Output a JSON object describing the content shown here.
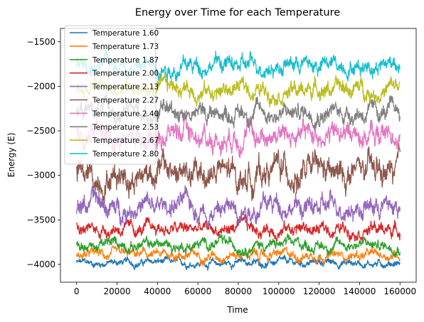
{
  "chart_data": {
    "type": "line",
    "title": "Energy over Time for each Temperature",
    "xlabel": "Time",
    "ylabel": "Energy (E)",
    "xlim": [
      -8000,
      168000
    ],
    "ylim": [
      -4200,
      -1350
    ],
    "x_ticks": [
      0,
      20000,
      40000,
      60000,
      80000,
      100000,
      120000,
      140000,
      160000
    ],
    "y_ticks": [
      -4000,
      -3500,
      -3000,
      -2500,
      -2000,
      -1500
    ],
    "x_tick_labels": [
      "0",
      "20000",
      "40000",
      "60000",
      "80000",
      "100000",
      "120000",
      "140000",
      "160000"
    ],
    "y_tick_labels": [
      "−4000",
      "−3500",
      "−3000",
      "−2500",
      "−2000",
      "−1500"
    ],
    "grid": false,
    "legend_position": "top-left",
    "x": [
      0,
      10000,
      20000,
      30000,
      40000,
      50000,
      60000,
      70000,
      80000,
      90000,
      100000,
      110000,
      120000,
      130000,
      140000,
      150000,
      160000
    ],
    "series": [
      {
        "name": "Temperature 1.60",
        "color": "#1f77b4",
        "values": [
          -3980,
          -3990,
          -3975,
          -3985,
          -3970,
          -3990,
          -3980,
          -3995,
          -3975,
          -3985,
          -3980,
          -3990,
          -3970,
          -3985,
          -3980,
          -3990,
          -3975
        ],
        "spread": 60
      },
      {
        "name": "Temperature 1.73",
        "color": "#ff7f0e",
        "values": [
          -3900,
          -3880,
          -3910,
          -3890,
          -3905,
          -3885,
          -3900,
          -3895,
          -3880,
          -3905,
          -3890,
          -3900,
          -3885,
          -3910,
          -3895,
          -3900,
          -3885
        ],
        "spread": 80
      },
      {
        "name": "Temperature 1.87",
        "color": "#2ca02c",
        "values": [
          -3780,
          -3800,
          -3760,
          -3790,
          -3770,
          -3800,
          -3780,
          -3760,
          -3790,
          -3775,
          -3785,
          -3770,
          -3795,
          -3780,
          -3765,
          -3790,
          -3780
        ],
        "spread": 90
      },
      {
        "name": "Temperature 2.00",
        "color": "#d62728",
        "values": [
          -3600,
          -3620,
          -3580,
          -3630,
          -3590,
          -3610,
          -3600,
          -3620,
          -3580,
          -3610,
          -3600,
          -3590,
          -3620,
          -3600,
          -3590,
          -3610,
          -3600
        ],
        "spread": 110
      },
      {
        "name": "Temperature 2.13",
        "color": "#9467bd",
        "values": [
          -3350,
          -3300,
          -3400,
          -3320,
          -3380,
          -3310,
          -3360,
          -3400,
          -3330,
          -3370,
          -3300,
          -3350,
          -3390,
          -3320,
          -3360,
          -3340,
          -3350
        ],
        "spread": 170
      },
      {
        "name": "Temperature 2.27",
        "color": "#8c564b",
        "values": [
          -3000,
          -3050,
          -2950,
          -3000,
          -2900,
          -2980,
          -3020,
          -2950,
          -3050,
          -2980,
          -2900,
          -3000,
          -2960,
          -3030,
          -2950,
          -2990,
          -2950
        ],
        "spread": 230
      },
      {
        "name": "Temperature 2.40",
        "color": "#e377c2",
        "values": [
          -2550,
          -2500,
          -2600,
          -2520,
          -2580,
          -2480,
          -2550,
          -2600,
          -2500,
          -2560,
          -2520,
          -2580,
          -2500,
          -2550,
          -2520,
          -2560,
          -2500
        ],
        "spread": 190
      },
      {
        "name": "Temperature 2.53",
        "color": "#7f7f7f",
        "values": [
          -2300,
          -2250,
          -2320,
          -2280,
          -2300,
          -2260,
          -2310,
          -2280,
          -2300,
          -2270,
          -2320,
          -2290,
          -2260,
          -2300,
          -2280,
          -2310,
          -2280
        ],
        "spread": 150
      },
      {
        "name": "Temperature 2.67",
        "color": "#bcbd22",
        "values": [
          -2050,
          -2000,
          -2080,
          -2020,
          -2060,
          -1990,
          -2040,
          -2070,
          -2010,
          -2050,
          -2030,
          -2060,
          -2000,
          -2040,
          -2020,
          -2060,
          -2000
        ],
        "spread": 140
      },
      {
        "name": "Temperature 2.80",
        "color": "#17becf",
        "values": [
          -1750,
          -1800,
          -1720,
          -1780,
          -1740,
          -1800,
          -1760,
          -1720,
          -1790,
          -1750,
          -1770,
          -1730,
          -1780,
          -1750,
          -1760,
          -1740,
          -1700
        ],
        "spread": 140
      }
    ]
  }
}
